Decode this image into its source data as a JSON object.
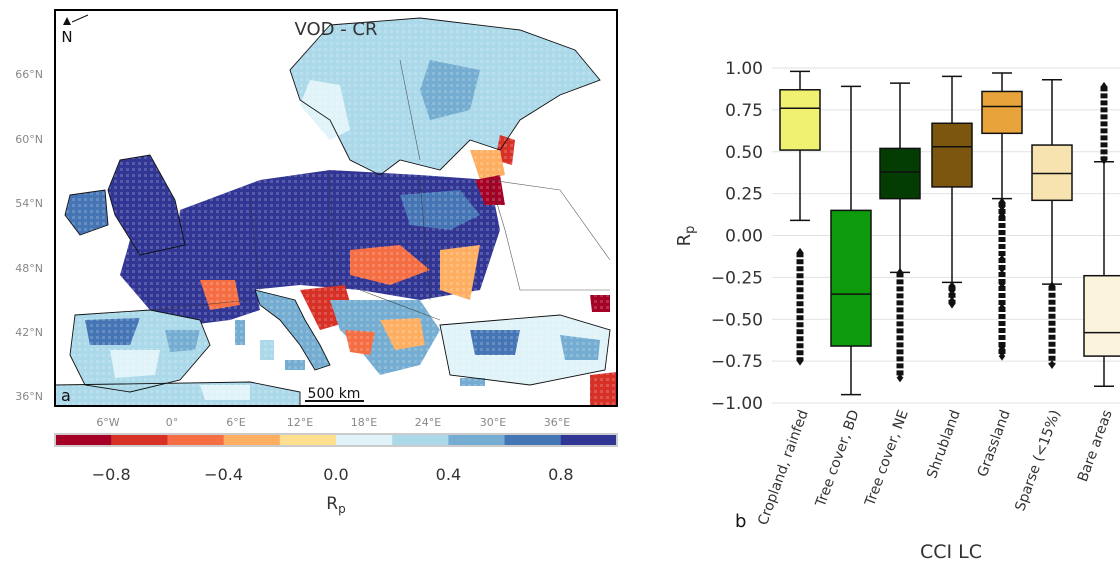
{
  "map": {
    "title": "VOD - CR",
    "panel_label": "a",
    "north_label": "N",
    "scale_label": "500 km",
    "lat_labels": [
      "66°N",
      "60°N",
      "54°N",
      "48°N",
      "42°N",
      "36°N"
    ],
    "lon_labels": [
      "6°W",
      "0°",
      "6°E",
      "12°E",
      "18°E",
      "24°E",
      "30°E",
      "36°E"
    ],
    "colorbar": {
      "label": "Rp",
      "ticks": [
        "−0.8",
        "−0.4",
        "0.0",
        "0.4",
        "0.8"
      ],
      "range": [
        -1,
        1
      ],
      "colors": [
        "#a50026",
        "#d73027",
        "#f46d43",
        "#fdae61",
        "#fee090",
        "#e0f3f8",
        "#abd9e9",
        "#74add1",
        "#4575b4",
        "#313695"
      ]
    }
  },
  "chart_data": {
    "type": "box",
    "panel_label": "b",
    "xlabel": "CCI LC",
    "ylabel": "Rp",
    "ylim": [
      -1.0,
      1.0
    ],
    "yticks": [
      "1.00",
      "0.75",
      "0.50",
      "0.25",
      "0.00",
      "−0.25",
      "−0.50",
      "−0.75",
      "−1.00"
    ],
    "ytick_values": [
      1.0,
      0.75,
      0.5,
      0.25,
      0.0,
      -0.25,
      -0.5,
      -0.75,
      -1.0
    ],
    "categories": [
      "Cropland, rainfed",
      "Tree cover, BD",
      "Tree cover, NE",
      "Shrubland",
      "Grassland",
      "Sparse (<15%)",
      "Bare areas"
    ],
    "colors": [
      "#f0f071",
      "#0d9a0d",
      "#043d04",
      "#7c560f",
      "#e8a33a",
      "#f6e3b0",
      "#fbf3dc"
    ],
    "boxes": [
      {
        "whislo": 0.09,
        "q1": 0.51,
        "med": 0.76,
        "q3": 0.87,
        "whishi": 0.98,
        "fliers_low": [
          -0.1,
          -0.75
        ]
      },
      {
        "whislo": -0.95,
        "q1": -0.66,
        "med": -0.35,
        "q3": 0.15,
        "whishi": 0.89
      },
      {
        "whislo": -0.22,
        "q1": 0.22,
        "med": 0.38,
        "q3": 0.52,
        "whishi": 0.91,
        "fliers_low": [
          -0.22,
          -0.85
        ]
      },
      {
        "whislo": -0.28,
        "q1": 0.29,
        "med": 0.53,
        "q3": 0.67,
        "whishi": 0.95,
        "fliers_low": [
          -0.3,
          -0.41
        ]
      },
      {
        "whislo": 0.22,
        "q1": 0.61,
        "med": 0.77,
        "q3": 0.86,
        "whishi": 0.97,
        "fliers_low": [
          0.2,
          -0.72
        ]
      },
      {
        "whislo": -0.29,
        "q1": 0.21,
        "med": 0.37,
        "q3": 0.54,
        "whishi": 0.93,
        "fliers_low": [
          -0.3,
          -0.77
        ]
      },
      {
        "whislo": -0.9,
        "q1": -0.72,
        "med": -0.58,
        "q3": -0.24,
        "whishi": 0.44,
        "fliers_high": [
          0.45,
          0.89
        ]
      }
    ]
  }
}
